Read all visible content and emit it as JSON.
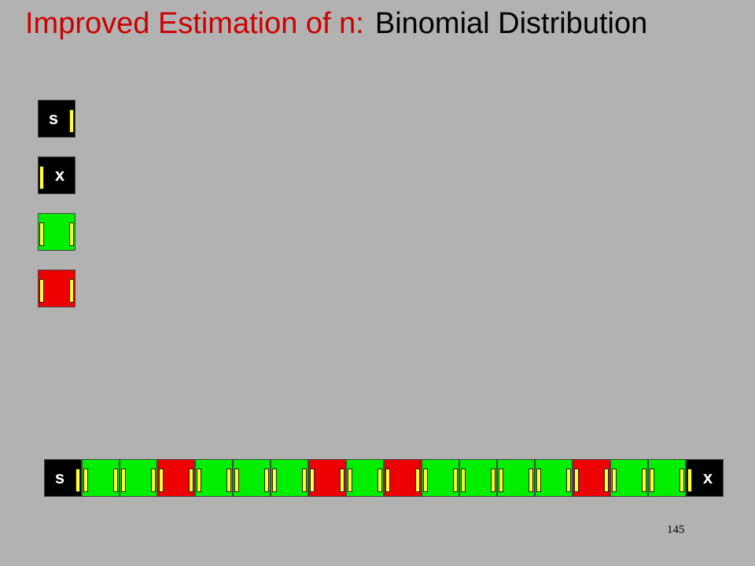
{
  "title": {
    "part1": "Improved Estimation of n:",
    "part2": "Binomial Distribution"
  },
  "legend_blocks": [
    {
      "type": "start",
      "label": "s"
    },
    {
      "type": "end",
      "label": "x"
    },
    {
      "type": "success"
    },
    {
      "type": "failure"
    }
  ],
  "chain": {
    "start_label": "s",
    "end_label": "x",
    "units": [
      "success",
      "success",
      "failure",
      "success",
      "success",
      "success",
      "failure",
      "success",
      "failure",
      "success",
      "success",
      "success",
      "success",
      "failure",
      "success",
      "success"
    ]
  },
  "colors": {
    "background": "#b2b2b2",
    "success": "#00ee00",
    "failure": "#ee0000",
    "connector": "#ffff33",
    "terminal": "#000000",
    "title_accent": "#cc0000"
  },
  "page_number": "145"
}
